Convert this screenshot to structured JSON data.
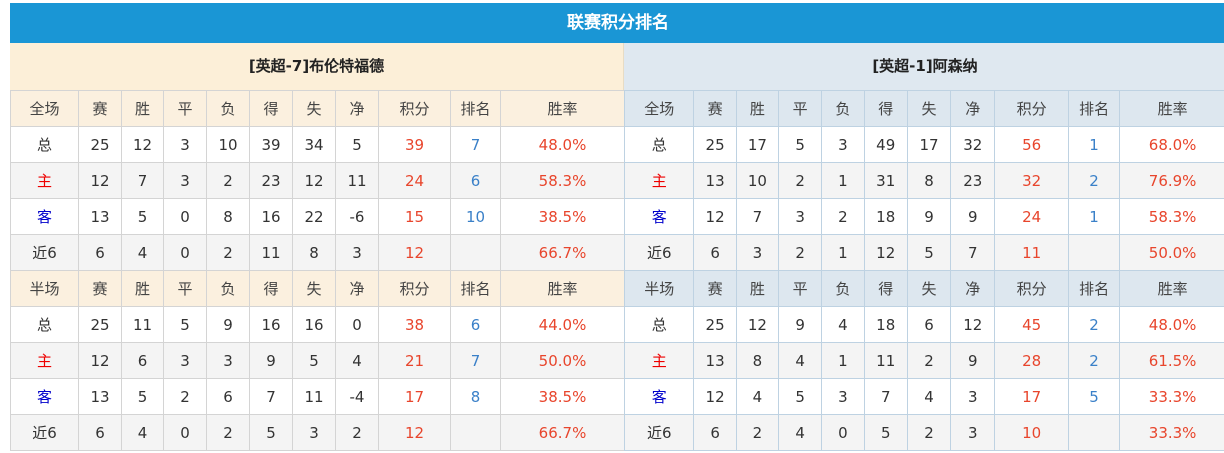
{
  "title": "联赛积分排名",
  "headers_full": [
    "全场",
    "赛",
    "胜",
    "平",
    "负",
    "得",
    "失",
    "净",
    "积分",
    "排名",
    "胜率"
  ],
  "headers_half": [
    "半场",
    "赛",
    "胜",
    "平",
    "负",
    "得",
    "失",
    "净",
    "积分",
    "排名",
    "胜率"
  ],
  "colors": {
    "title_bar": "#1a96d5",
    "points": "#e8452c",
    "rank": "#3a80c8",
    "home_label": "#e00000",
    "away_label": "#0000cc"
  },
  "teams": [
    {
      "name": "[英超-7]布伦特福德",
      "full": [
        [
          "总",
          "25",
          "12",
          "3",
          "10",
          "39",
          "34",
          "5",
          "39",
          "7",
          "48.0%"
        ],
        [
          "主",
          "12",
          "7",
          "3",
          "2",
          "23",
          "12",
          "11",
          "24",
          "6",
          "58.3%"
        ],
        [
          "客",
          "13",
          "5",
          "0",
          "8",
          "16",
          "22",
          "-6",
          "15",
          "10",
          "38.5%"
        ],
        [
          "近6",
          "6",
          "4",
          "0",
          "2",
          "11",
          "8",
          "3",
          "12",
          "",
          "66.7%"
        ]
      ],
      "half": [
        [
          "总",
          "25",
          "11",
          "5",
          "9",
          "16",
          "16",
          "0",
          "38",
          "6",
          "44.0%"
        ],
        [
          "主",
          "12",
          "6",
          "3",
          "3",
          "9",
          "5",
          "4",
          "21",
          "7",
          "50.0%"
        ],
        [
          "客",
          "13",
          "5",
          "2",
          "6",
          "7",
          "11",
          "-4",
          "17",
          "8",
          "38.5%"
        ],
        [
          "近6",
          "6",
          "4",
          "0",
          "2",
          "5",
          "3",
          "2",
          "12",
          "",
          "66.7%"
        ]
      ]
    },
    {
      "name": "[英超-1]阿森纳",
      "full": [
        [
          "总",
          "25",
          "17",
          "5",
          "3",
          "49",
          "17",
          "32",
          "56",
          "1",
          "68.0%"
        ],
        [
          "主",
          "13",
          "10",
          "2",
          "1",
          "31",
          "8",
          "23",
          "32",
          "2",
          "76.9%"
        ],
        [
          "客",
          "12",
          "7",
          "3",
          "2",
          "18",
          "9",
          "9",
          "24",
          "1",
          "58.3%"
        ],
        [
          "近6",
          "6",
          "3",
          "2",
          "1",
          "12",
          "5",
          "7",
          "11",
          "",
          "50.0%"
        ]
      ],
      "half": [
        [
          "总",
          "25",
          "12",
          "9",
          "4",
          "18",
          "6",
          "12",
          "45",
          "2",
          "48.0%"
        ],
        [
          "主",
          "13",
          "8",
          "4",
          "1",
          "11",
          "2",
          "9",
          "28",
          "2",
          "61.5%"
        ],
        [
          "客",
          "12",
          "4",
          "5",
          "3",
          "7",
          "4",
          "3",
          "17",
          "5",
          "33.3%"
        ],
        [
          "近6",
          "6",
          "2",
          "4",
          "0",
          "5",
          "2",
          "3",
          "10",
          "",
          "33.3%"
        ]
      ]
    }
  ]
}
